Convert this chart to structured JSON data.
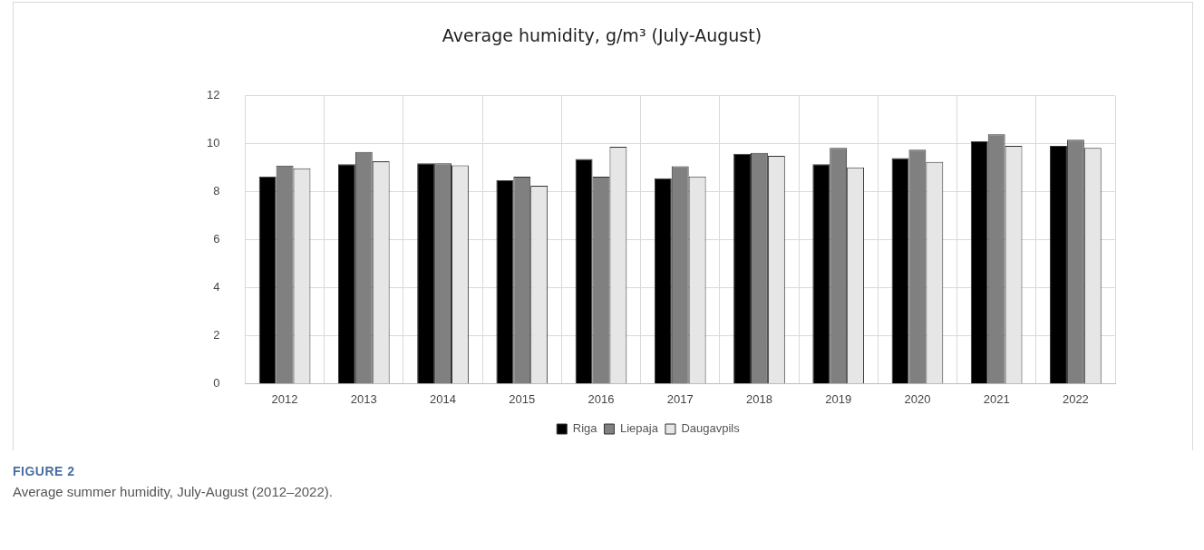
{
  "chart_data": {
    "type": "bar",
    "title": "Average humidity, g/m³ (July-August)",
    "categories": [
      "2012",
      "2013",
      "2014",
      "2015",
      "2016",
      "2017",
      "2018",
      "2019",
      "2020",
      "2021",
      "2022"
    ],
    "series": [
      {
        "name": "Riga",
        "color": "#000000",
        "values": [
          8.64,
          9.15,
          9.19,
          8.48,
          9.37,
          8.56,
          9.58,
          9.15,
          9.4,
          10.1,
          9.91
        ]
      },
      {
        "name": "Liepaja",
        "color": "#808080",
        "values": [
          9.09,
          9.66,
          9.19,
          8.63,
          8.63,
          9.06,
          9.62,
          9.83,
          9.75,
          10.4,
          10.17
        ]
      },
      {
        "name": "Daugavpils",
        "color": "#e6e6e6",
        "values": [
          8.98,
          9.27,
          9.1,
          8.25,
          9.88,
          8.64,
          9.5,
          9.02,
          9.24,
          9.91,
          9.83
        ]
      }
    ],
    "ylim": [
      0,
      12
    ],
    "yticks": [
      0,
      2,
      4,
      6,
      8,
      10,
      12
    ],
    "grid": true,
    "legend": "bottom",
    "annotations": [
      "FIGURE 2",
      "Average summer humidity, July-August (2012–2022)."
    ]
  }
}
